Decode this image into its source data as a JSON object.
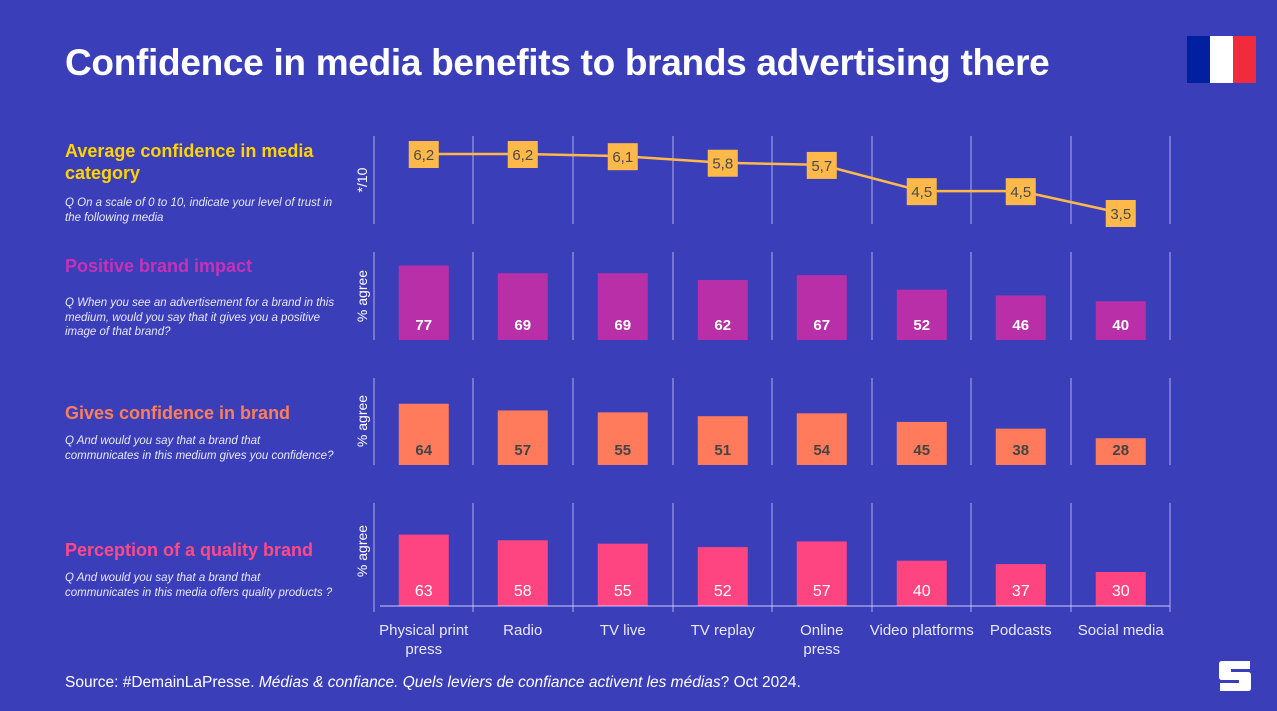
{
  "header": {
    "title": "Confidence in media benefits to brands advertising there",
    "flag": {
      "name": "france-flag",
      "colors": [
        "#00209f",
        "#ffffff",
        "#ef2b3c"
      ]
    }
  },
  "sections": [
    {
      "heading": "Average confidence in media category",
      "question": "Q On a scale of 0 to 10, indicate your level of trust in the following media",
      "color": "#ffd400"
    },
    {
      "heading": "Positive brand impact",
      "question": "Q When you see an advertisement for a brand in this medium, would you say that it gives you a positive image of that brand?",
      "color": "#c632b5"
    },
    {
      "heading": "Gives  confidence in brand",
      "question": "Q And would you say that a brand that communicates in this medium gives you confidence?",
      "color": "#ff7f5a"
    },
    {
      "heading": "Perception of a quality brand",
      "question": "Q And would you say that a brand that communicates in this media offers quality products ?",
      "color": "#ff4a86"
    }
  ],
  "chart_data": [
    {
      "type": "line",
      "title": "Average confidence in media category",
      "ylabel": "*/10",
      "categories": [
        "Physical print press",
        "Radio",
        "TV live",
        "TV replay",
        "Online press",
        "Video platforms",
        "Podcasts",
        "Social media"
      ],
      "values": [
        6.2,
        6.2,
        6.1,
        5.8,
        5.7,
        4.5,
        4.5,
        3.5
      ],
      "value_labels": [
        "6,2",
        "6,2",
        "6,1",
        "5,8",
        "5,7",
        "4,5",
        "4,5",
        "3,5"
      ],
      "ylim": [
        0,
        10
      ],
      "color": "#ffb94a",
      "label_text_color": "#4a4a4a"
    },
    {
      "type": "bar",
      "title": "Positive brand impact",
      "ylabel": "% agree",
      "categories": [
        "Physical print press",
        "Radio",
        "TV live",
        "TV replay",
        "Online press",
        "Video platforms",
        "Podcasts",
        "Social media"
      ],
      "values": [
        77,
        69,
        69,
        62,
        67,
        52,
        46,
        40
      ],
      "ylim": [
        0,
        100
      ],
      "color": "#b92fa8",
      "label_color": "#ffffff",
      "label_bold": true
    },
    {
      "type": "bar",
      "title": "Gives confidence in brand",
      "ylabel": "% agree",
      "categories": [
        "Physical print press",
        "Radio",
        "TV live",
        "TV replay",
        "Online press",
        "Video platforms",
        "Podcasts",
        "Social media"
      ],
      "values": [
        64,
        57,
        55,
        51,
        54,
        45,
        38,
        28
      ],
      "ylim": [
        0,
        100
      ],
      "color": "#ff7b5c",
      "label_color": "#444444",
      "label_bold": true
    },
    {
      "type": "bar",
      "title": "Perception of a quality brand",
      "ylabel": "% agree",
      "categories": [
        "Physical print press",
        "Radio",
        "TV live",
        "TV replay",
        "Online press",
        "Video platforms",
        "Podcasts",
        "Social media"
      ],
      "values": [
        63,
        58,
        55,
        52,
        57,
        40,
        37,
        30
      ],
      "ylim": [
        0,
        100
      ],
      "color": "#ff4581",
      "label_color": "#ffffff",
      "label_bold": false
    }
  ],
  "x_axis": {
    "labels": [
      [
        "Physical print",
        "press"
      ],
      [
        "Radio"
      ],
      [
        "TV live"
      ],
      [
        "TV replay"
      ],
      [
        "Online",
        "press"
      ],
      [
        "Video platforms"
      ],
      [
        "Podcasts"
      ],
      [
        "Social media"
      ]
    ]
  },
  "footer": {
    "source_prefix": "Source: #DemainLaPresse. ",
    "source_italic": "Médias & confiance. Quels leviers de confiance activent les médias",
    "source_suffix": "? Oct 2024.",
    "logo_letter": "S"
  }
}
